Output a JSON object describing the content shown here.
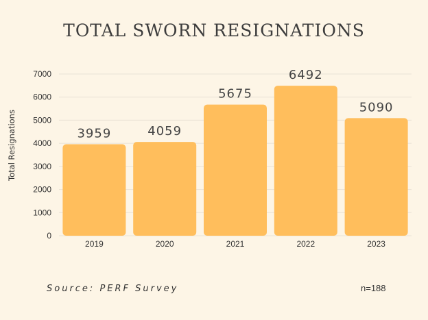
{
  "footer": {
    "source": "Source: PERF Survey",
    "n": "n=188"
  },
  "colors": {
    "background": "#fdf5e6",
    "bar": "#ffbe5c",
    "grid": "#e9e2d5"
  },
  "chart_data": {
    "type": "bar",
    "title": "TOTAL SWORN RESIGNATIONS",
    "xlabel": "",
    "ylabel": "Total Resignations",
    "categories": [
      "2019",
      "2020",
      "2021",
      "2022",
      "2023"
    ],
    "values": [
      3959,
      4059,
      5675,
      6492,
      5090
    ],
    "ylim": [
      0,
      7000
    ],
    "yticks": [
      0,
      1000,
      2000,
      3000,
      4000,
      5000,
      6000,
      7000
    ],
    "grid": true,
    "legend": "none",
    "data_labels": true
  }
}
